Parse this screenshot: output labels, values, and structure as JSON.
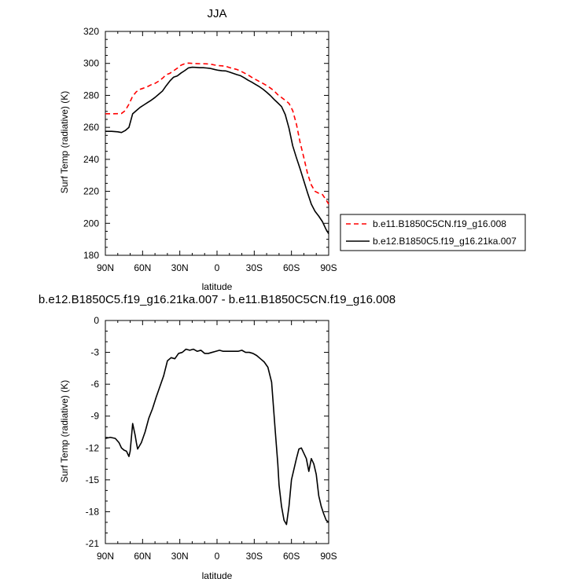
{
  "chart_data": [
    {
      "type": "line",
      "title": "JJA",
      "xlabel": "latitude",
      "ylabel": "Surf Temp (radiative) (K)",
      "xlim": [
        90,
        -90
      ],
      "ylim": [
        180,
        320
      ],
      "x_tick_values": [
        90,
        60,
        30,
        0,
        -30,
        -60,
        -90
      ],
      "x_tick_labels": [
        "90N",
        "60N",
        "30N",
        "0",
        "30S",
        "60S",
        "90S"
      ],
      "y_tick_values": [
        180,
        200,
        220,
        240,
        260,
        280,
        300,
        320
      ],
      "y_tick_labels": [
        "180",
        "200",
        "220",
        "240",
        "260",
        "280",
        "300",
        "320"
      ],
      "legend_position": "right",
      "series": [
        {
          "name": "b.e11.B1850C5CN.f19_g16.008",
          "color": "#ff0000",
          "dash": "dashed",
          "x": [
            90,
            85,
            80,
            77,
            74,
            71,
            68,
            65,
            62,
            59,
            56,
            53,
            50,
            47,
            44,
            41,
            38,
            35,
            32,
            29,
            26,
            23,
            20,
            17,
            14,
            11,
            8,
            5,
            2,
            -1,
            -4,
            -7,
            -10,
            -13,
            -16,
            -19,
            -22,
            -25,
            -28,
            -31,
            -34,
            -37,
            -40,
            -43,
            -46,
            -49,
            -52,
            -55,
            -58,
            -61,
            -64,
            -67,
            -70,
            -73,
            -76,
            -79,
            -82,
            -85,
            -88,
            -90
          ],
          "y": [
            268.5,
            268.5,
            268.6,
            268.7,
            270.5,
            274.5,
            279.5,
            282.3,
            283.8,
            284.6,
            285.5,
            286.7,
            287.5,
            288.9,
            290.7,
            292.9,
            293.8,
            295.4,
            297.0,
            298.9,
            299.8,
            300.2,
            300.0,
            299.9,
            299.8,
            299.8,
            299.7,
            299.5,
            299.0,
            298.6,
            298.5,
            298.2,
            297.4,
            296.8,
            296.2,
            295.2,
            294.0,
            292.8,
            291.3,
            290.0,
            288.7,
            287.5,
            286.2,
            284.6,
            282.8,
            280.4,
            278.7,
            276.9,
            275.0,
            270.5,
            262.0,
            250.5,
            241.0,
            231.0,
            224.0,
            220.0,
            218.8,
            218.0,
            214.5,
            212.0
          ]
        },
        {
          "name": "b.e12.B1850C5.f19_g16.21ka.007",
          "color": "#000000",
          "dash": "solid",
          "x": [
            90,
            85,
            80,
            77,
            74,
            71,
            68,
            65,
            62,
            59,
            56,
            53,
            50,
            47,
            44,
            41,
            38,
            35,
            32,
            29,
            26,
            23,
            20,
            17,
            14,
            11,
            8,
            5,
            2,
            -1,
            -4,
            -7,
            -10,
            -13,
            -16,
            -19,
            -22,
            -25,
            -28,
            -31,
            -34,
            -37,
            -40,
            -43,
            -46,
            -49,
            -52,
            -55,
            -58,
            -61,
            -64,
            -67,
            -70,
            -73,
            -76,
            -79,
            -82,
            -85,
            -88,
            -90
          ],
          "y": [
            257.5,
            257.5,
            257.2,
            256.8,
            258.0,
            260.0,
            268.5,
            270.5,
            272.5,
            274.0,
            275.5,
            277.0,
            278.7,
            280.7,
            282.7,
            286.0,
            289.0,
            291.4,
            292.2,
            294.0,
            295.5,
            297.2,
            297.6,
            297.5,
            297.3,
            297.3,
            297.1,
            296.8,
            296.2,
            295.7,
            295.4,
            295.3,
            294.6,
            293.8,
            293.0,
            292.3,
            291.0,
            289.5,
            288.3,
            286.9,
            285.5,
            283.9,
            282.0,
            279.9,
            277.5,
            275.3,
            273.0,
            268.0,
            259.5,
            248.5,
            241.0,
            234.0,
            226.5,
            219.0,
            212.0,
            207.5,
            204.5,
            201.0,
            196.0,
            193.5
          ]
        }
      ]
    },
    {
      "type": "line",
      "title": "b.e12.B1850C5.f19_g16.21ka.007 - b.e11.B1850C5CN.f19_g16.008",
      "xlabel": "latitude",
      "ylabel": "Surf Temp (radiative) (K)",
      "xlim": [
        90,
        -90
      ],
      "ylim": [
        -21,
        0
      ],
      "x_tick_values": [
        90,
        60,
        30,
        0,
        -30,
        -60,
        -90
      ],
      "x_tick_labels": [
        "90N",
        "60N",
        "30N",
        "0",
        "30S",
        "60S",
        "90S"
      ],
      "y_tick_values": [
        0,
        -3,
        -6,
        -9,
        -12,
        -15,
        -18,
        -21
      ],
      "y_tick_labels": [
        "0",
        "-3",
        "-6",
        "-9",
        "-12",
        "-15",
        "-18",
        "-21"
      ],
      "series": [
        {
          "color": "#000000",
          "dash": "solid",
          "x": [
            90,
            86,
            82,
            79,
            77,
            75,
            73,
            71,
            70,
            68,
            66,
            65,
            64,
            61,
            58,
            55,
            52,
            49,
            46,
            43,
            40,
            37,
            34,
            31,
            28,
            25,
            22,
            19,
            16,
            13,
            10,
            7,
            4,
            1,
            -2,
            -5,
            -8,
            -11,
            -14,
            -17,
            -20,
            -23,
            -26,
            -29,
            -32,
            -35,
            -38,
            -41,
            -44,
            -47,
            -49,
            -50,
            -52,
            -54,
            -56,
            -58,
            -60,
            -62,
            -64,
            -66,
            -68,
            -70,
            -72,
            -74,
            -76,
            -78,
            -80,
            -82,
            -84,
            -86,
            -88,
            -90
          ],
          "y": [
            -11.1,
            -11.0,
            -11.1,
            -11.5,
            -12.0,
            -12.2,
            -12.3,
            -12.8,
            -12.3,
            -9.7,
            -10.8,
            -11.5,
            -12.1,
            -11.5,
            -10.5,
            -9.2,
            -8.3,
            -7.2,
            -6.2,
            -5.2,
            -3.8,
            -3.5,
            -3.6,
            -3.1,
            -3.0,
            -2.7,
            -2.8,
            -2.7,
            -2.9,
            -2.8,
            -3.1,
            -3.1,
            -3.0,
            -2.9,
            -2.8,
            -2.9,
            -2.9,
            -2.9,
            -2.9,
            -2.9,
            -2.8,
            -3.0,
            -3.0,
            -3.1,
            -3.3,
            -3.6,
            -3.9,
            -4.4,
            -5.8,
            -10.5,
            -13.5,
            -15.5,
            -17.5,
            -18.8,
            -19.2,
            -17.5,
            -15.0,
            -14.0,
            -13.0,
            -12.1,
            -12.0,
            -12.5,
            -13.0,
            -14.2,
            -13.0,
            -13.5,
            -14.5,
            -16.5,
            -17.5,
            -18.2,
            -18.8,
            -19.0
          ]
        }
      ]
    }
  ]
}
